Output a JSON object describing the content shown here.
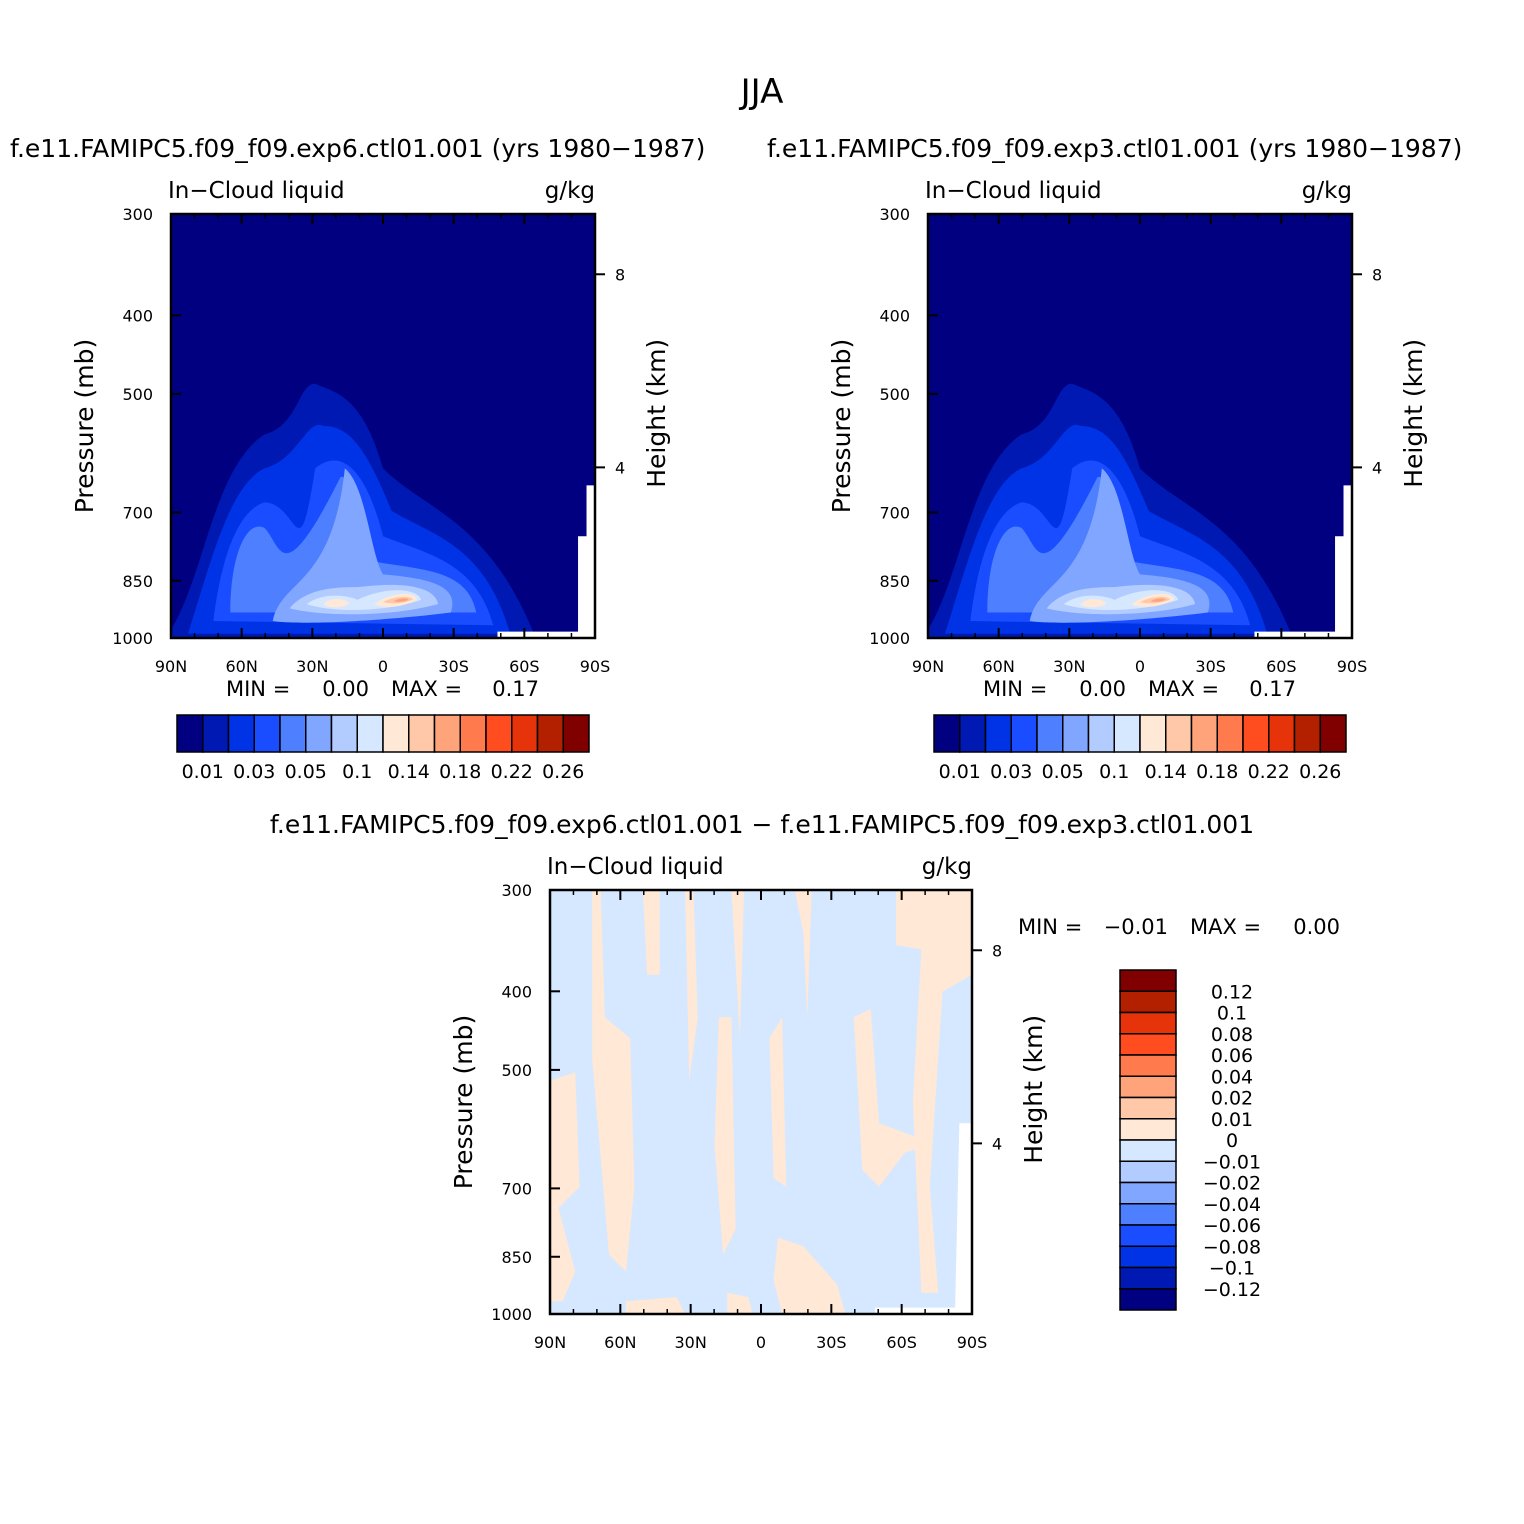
{
  "figure": {
    "title": "JJA",
    "diff_title": "f.e11.FAMIPC5.f09_f09.exp6.ctl01.001 − f.e11.FAMIPC5.f09_f09.exp3.ctl01.001"
  },
  "chart_data": [
    {
      "type": "heatmap",
      "case_title": "f.e11.FAMIPC5.f09_f09.exp6.ctl01.001 (yrs 1980−1987)",
      "left_label": "In−Cloud liquid",
      "right_label": "g/kg",
      "ylabel": "Pressure (mb)",
      "y2label": "Height (km)",
      "xticks": [
        "90N",
        "60N",
        "30N",
        "0",
        "30S",
        "60S",
        "90S"
      ],
      "yticks": [
        "300",
        "400",
        "500",
        "700",
        "850",
        "1000"
      ],
      "y2ticks": [
        "8",
        "4"
      ],
      "min_label": "MIN =",
      "min_value": "0.00",
      "max_label": "MAX =",
      "max_value": "0.17",
      "colorbar": {
        "orientation": "horizontal",
        "colors": [
          "#000080",
          "#0019b3",
          "#0033e6",
          "#1a4dff",
          "#4d7fff",
          "#80a6ff",
          "#b3ccff",
          "#d6e8ff",
          "#ffe8d6",
          "#ffc8a8",
          "#ffa47a",
          "#ff7a4d",
          "#ff4d1f",
          "#e6330a",
          "#b32000",
          "#800000"
        ],
        "labels": [
          "0.01",
          "0.03",
          "0.05",
          "0.1",
          "0.14",
          "0.18",
          "0.22",
          "0.26"
        ]
      }
    },
    {
      "type": "heatmap",
      "case_title": "f.e11.FAMIPC5.f09_f09.exp3.ctl01.001 (yrs 1980−1987)",
      "left_label": "In−Cloud liquid",
      "right_label": "g/kg",
      "ylabel": "Pressure (mb)",
      "y2label": "Height (km)",
      "xticks": [
        "90N",
        "60N",
        "30N",
        "0",
        "30S",
        "60S",
        "90S"
      ],
      "yticks": [
        "300",
        "400",
        "500",
        "700",
        "850",
        "1000"
      ],
      "y2ticks": [
        "8",
        "4"
      ],
      "min_label": "MIN =",
      "min_value": "0.00",
      "max_label": "MAX =",
      "max_value": "0.17",
      "colorbar": {
        "orientation": "horizontal",
        "colors": [
          "#000080",
          "#0019b3",
          "#0033e6",
          "#1a4dff",
          "#4d7fff",
          "#80a6ff",
          "#b3ccff",
          "#d6e8ff",
          "#ffe8d6",
          "#ffc8a8",
          "#ffa47a",
          "#ff7a4d",
          "#ff4d1f",
          "#e6330a",
          "#b32000",
          "#800000"
        ],
        "labels": [
          "0.01",
          "0.03",
          "0.05",
          "0.1",
          "0.14",
          "0.18",
          "0.22",
          "0.26"
        ]
      }
    },
    {
      "type": "heatmap",
      "left_label": "In−Cloud liquid",
      "right_label": "g/kg",
      "ylabel": "Pressure (mb)",
      "y2label": "Height (km)",
      "xticks": [
        "90N",
        "60N",
        "30N",
        "0",
        "30S",
        "60S",
        "90S"
      ],
      "yticks": [
        "300",
        "400",
        "500",
        "700",
        "850",
        "1000"
      ],
      "y2ticks": [
        "8",
        "4"
      ],
      "min_label": "MIN =",
      "min_value": "−0.01",
      "max_label": "MAX =",
      "max_value": "0.00",
      "colorbar": {
        "orientation": "vertical",
        "colors": [
          "#800000",
          "#b32000",
          "#e6330a",
          "#ff4d1f",
          "#ff7a4d",
          "#ffa47a",
          "#ffc8a8",
          "#ffe8d6",
          "#d6e8ff",
          "#b3ccff",
          "#80a6ff",
          "#4d7fff",
          "#1a4dff",
          "#0033e6",
          "#0019b3",
          "#000080"
        ],
        "labels": [
          "0.12",
          "0.1",
          "0.08",
          "0.06",
          "0.04",
          "0.02",
          "0.01",
          "0",
          "−0.01",
          "−0.02",
          "−0.04",
          "−0.06",
          "−0.08",
          "−0.1",
          "−0.12"
        ]
      }
    }
  ]
}
